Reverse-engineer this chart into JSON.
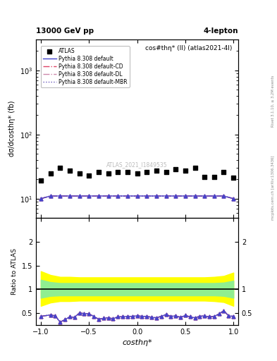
{
  "title_main": "cos#thη* (ll) (atlas2021-4l)",
  "top_left_label": "13000 GeV pp",
  "top_right_label": "4-lepton",
  "right_label_top": "Rivet 3.1.10, ≥ 3.2M events",
  "right_label_bottom": "mcplots.cern.ch [arXiv:1306.3436]",
  "watermark": "ATLAS_2021_I1849535",
  "xlabel": "costhη*",
  "ylabel_top": "dσ/dcosthη* (fb)",
  "ylabel_bottom": "Ratio to ATLAS",
  "xlim": [
    -1.05,
    1.05
  ],
  "xticks": [
    -1.0,
    -0.5,
    0.0,
    0.5,
    1.0
  ],
  "atlas_x": [
    -1.0,
    -0.9,
    -0.8,
    -0.7,
    -0.6,
    -0.5,
    -0.4,
    -0.3,
    -0.2,
    -0.1,
    0.0,
    0.1,
    0.2,
    0.3,
    0.4,
    0.5,
    0.6,
    0.7,
    0.8,
    0.9,
    1.0
  ],
  "atlas_y": [
    19,
    25,
    30,
    27,
    25,
    23,
    26,
    25,
    26,
    26,
    25,
    26,
    27,
    26,
    29,
    27,
    30,
    22,
    22,
    26,
    21
  ],
  "pythia_default_y": [
    10,
    11,
    11,
    11,
    11,
    11,
    11,
    11,
    11,
    11,
    11,
    11,
    11,
    11,
    11,
    11,
    11,
    11,
    11,
    11,
    10
  ],
  "ratio_x": [
    -1.0,
    -0.9,
    -0.85,
    -0.8,
    -0.75,
    -0.7,
    -0.65,
    -0.6,
    -0.55,
    -0.5,
    -0.45,
    -0.4,
    -0.35,
    -0.3,
    -0.25,
    -0.2,
    -0.15,
    -0.1,
    -0.05,
    0.0,
    0.05,
    0.1,
    0.15,
    0.2,
    0.25,
    0.3,
    0.35,
    0.4,
    0.45,
    0.5,
    0.55,
    0.6,
    0.65,
    0.7,
    0.75,
    0.8,
    0.85,
    0.9,
    0.95,
    1.0
  ],
  "ratio_y": [
    0.43,
    0.46,
    0.44,
    0.31,
    0.36,
    0.42,
    0.41,
    0.5,
    0.49,
    0.48,
    0.43,
    0.37,
    0.39,
    0.4,
    0.38,
    0.42,
    0.42,
    0.43,
    0.43,
    0.44,
    0.43,
    0.43,
    0.41,
    0.4,
    0.43,
    0.47,
    0.43,
    0.44,
    0.41,
    0.45,
    0.42,
    0.4,
    0.43,
    0.44,
    0.42,
    0.43,
    0.48,
    0.55,
    0.44,
    0.43
  ],
  "green_band_x": [
    -1.0,
    -0.9,
    -0.8,
    -0.7,
    -0.6,
    -0.5,
    -0.4,
    -0.3,
    -0.2,
    -0.1,
    0.0,
    0.1,
    0.2,
    0.3,
    0.4,
    0.5,
    0.6,
    0.7,
    0.8,
    0.9,
    1.0
  ],
  "green_band_upper": [
    1.2,
    1.15,
    1.13,
    1.13,
    1.13,
    1.13,
    1.13,
    1.13,
    1.13,
    1.13,
    1.13,
    1.13,
    1.13,
    1.13,
    1.13,
    1.13,
    1.13,
    1.13,
    1.13,
    1.14,
    1.18
  ],
  "green_band_lower": [
    0.82,
    0.86,
    0.87,
    0.87,
    0.87,
    0.87,
    0.87,
    0.87,
    0.87,
    0.87,
    0.87,
    0.87,
    0.87,
    0.87,
    0.87,
    0.87,
    0.87,
    0.87,
    0.87,
    0.86,
    0.82
  ],
  "yellow_band_upper": [
    1.38,
    1.3,
    1.26,
    1.26,
    1.25,
    1.25,
    1.25,
    1.25,
    1.25,
    1.25,
    1.25,
    1.25,
    1.25,
    1.25,
    1.25,
    1.25,
    1.25,
    1.25,
    1.26,
    1.28,
    1.35
  ],
  "yellow_band_lower": [
    0.65,
    0.72,
    0.75,
    0.75,
    0.76,
    0.76,
    0.76,
    0.76,
    0.76,
    0.76,
    0.76,
    0.76,
    0.76,
    0.76,
    0.76,
    0.76,
    0.76,
    0.76,
    0.75,
    0.73,
    0.65
  ],
  "background_color": "white"
}
